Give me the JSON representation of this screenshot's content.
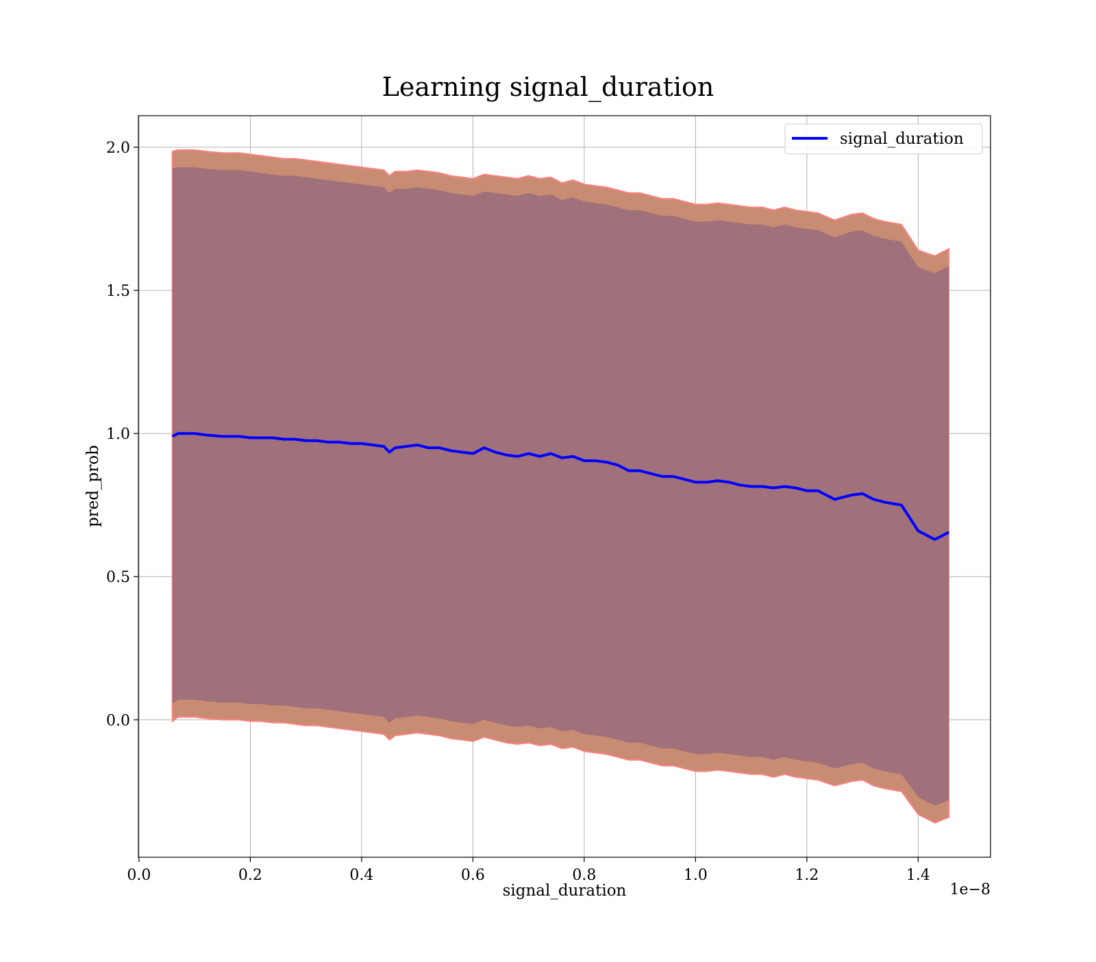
{
  "chart_data": {
    "type": "line",
    "title": "Learning signal_duration",
    "xlabel": "signal_duration",
    "ylabel": "pred_prob",
    "x_offset_text": "1e−8",
    "xlim": [
      -1.15e-11,
      1.53e-08
    ],
    "ylim": [
      -0.48,
      2.11
    ],
    "x_ticks": [
      0.0,
      2e-09,
      4e-09,
      6e-09,
      8e-09,
      1e-08,
      1.2e-08,
      1.4e-08
    ],
    "x_tick_labels": [
      "0.0",
      "0.2",
      "0.4",
      "0.6",
      "0.8",
      "1.0",
      "1.2",
      "1.4"
    ],
    "y_ticks": [
      0.0,
      0.5,
      1.0,
      1.5,
      2.0
    ],
    "y_tick_labels": [
      "0.0",
      "0.5",
      "1.0",
      "1.5",
      "2.0"
    ],
    "grid": true,
    "legend_position": "top-right",
    "colors": {
      "line": "#0000ff",
      "outer_band": "#c88c73",
      "outer_band_edge": "#ff8080",
      "inner_band": "#a0717b",
      "grid": "#b0b0b0"
    },
    "series": [
      {
        "name": "signal_duration",
        "x": [
          6e-10,
          7e-10,
          8e-10,
          1e-09,
          1.2e-09,
          1.5e-09,
          1.8e-09,
          2e-09,
          2.2e-09,
          2.4e-09,
          2.6e-09,
          2.8e-09,
          3e-09,
          3.2e-09,
          3.4e-09,
          3.6e-09,
          3.8e-09,
          4e-09,
          4.2e-09,
          4.4e-09,
          4.5e-09,
          4.6e-09,
          4.8e-09,
          5e-09,
          5.2e-09,
          5.4e-09,
          5.6e-09,
          5.8e-09,
          6e-09,
          6.2e-09,
          6.4e-09,
          6.6e-09,
          6.8e-09,
          7e-09,
          7.2e-09,
          7.4e-09,
          7.6e-09,
          7.8e-09,
          8e-09,
          8.2e-09,
          8.4e-09,
          8.6e-09,
          8.8e-09,
          9e-09,
          9.2e-09,
          9.4e-09,
          9.6e-09,
          9.8e-09,
          1e-08,
          1.02e-08,
          1.04e-08,
          1.06e-08,
          1.08e-08,
          1.1e-08,
          1.12e-08,
          1.14e-08,
          1.16e-08,
          1.18e-08,
          1.2e-08,
          1.22e-08,
          1.25e-08,
          1.28e-08,
          1.3e-08,
          1.32e-08,
          1.34e-08,
          1.37e-08,
          1.4e-08,
          1.43e-08,
          1.455e-08
        ],
        "values": [
          0.99,
          1.0,
          1.0,
          1.0,
          0.995,
          0.99,
          0.99,
          0.985,
          0.985,
          0.985,
          0.98,
          0.98,
          0.975,
          0.975,
          0.97,
          0.97,
          0.965,
          0.965,
          0.96,
          0.955,
          0.935,
          0.95,
          0.955,
          0.96,
          0.95,
          0.95,
          0.94,
          0.935,
          0.93,
          0.95,
          0.935,
          0.925,
          0.92,
          0.93,
          0.92,
          0.93,
          0.915,
          0.92,
          0.905,
          0.905,
          0.9,
          0.89,
          0.87,
          0.87,
          0.86,
          0.85,
          0.85,
          0.84,
          0.83,
          0.83,
          0.835,
          0.83,
          0.82,
          0.815,
          0.815,
          0.81,
          0.815,
          0.81,
          0.8,
          0.8,
          0.77,
          0.785,
          0.79,
          0.77,
          0.76,
          0.75,
          0.66,
          0.63,
          0.655
        ],
        "outer_band_upper": [
          1.985,
          1.99,
          1.99,
          1.99,
          1.985,
          1.98,
          1.98,
          1.975,
          1.97,
          1.965,
          1.96,
          1.96,
          1.955,
          1.95,
          1.945,
          1.94,
          1.935,
          1.93,
          1.925,
          1.92,
          1.9,
          1.915,
          1.915,
          1.92,
          1.915,
          1.91,
          1.9,
          1.895,
          1.89,
          1.905,
          1.9,
          1.895,
          1.89,
          1.9,
          1.89,
          1.895,
          1.875,
          1.885,
          1.87,
          1.865,
          1.86,
          1.85,
          1.84,
          1.84,
          1.83,
          1.82,
          1.82,
          1.81,
          1.8,
          1.8,
          1.805,
          1.8,
          1.795,
          1.79,
          1.79,
          1.78,
          1.79,
          1.78,
          1.775,
          1.77,
          1.745,
          1.765,
          1.77,
          1.75,
          1.74,
          1.73,
          1.64,
          1.62,
          1.645
        ],
        "outer_band_lower": [
          -0.005,
          0.01,
          0.01,
          0.01,
          0.005,
          0.0,
          0.0,
          -0.005,
          -0.005,
          -0.01,
          -0.01,
          -0.015,
          -0.02,
          -0.02,
          -0.025,
          -0.03,
          -0.035,
          -0.04,
          -0.045,
          -0.05,
          -0.07,
          -0.055,
          -0.05,
          -0.045,
          -0.05,
          -0.055,
          -0.065,
          -0.07,
          -0.075,
          -0.06,
          -0.07,
          -0.08,
          -0.085,
          -0.08,
          -0.09,
          -0.085,
          -0.1,
          -0.095,
          -0.11,
          -0.115,
          -0.12,
          -0.13,
          -0.14,
          -0.14,
          -0.15,
          -0.16,
          -0.16,
          -0.17,
          -0.18,
          -0.18,
          -0.175,
          -0.18,
          -0.185,
          -0.19,
          -0.19,
          -0.2,
          -0.19,
          -0.2,
          -0.205,
          -0.21,
          -0.23,
          -0.215,
          -0.21,
          -0.23,
          -0.24,
          -0.25,
          -0.33,
          -0.36,
          -0.34
        ],
        "inner_band_upper": [
          1.925,
          1.93,
          1.93,
          1.93,
          1.925,
          1.92,
          1.92,
          1.915,
          1.91,
          1.905,
          1.9,
          1.9,
          1.895,
          1.89,
          1.885,
          1.88,
          1.875,
          1.87,
          1.865,
          1.86,
          1.84,
          1.855,
          1.855,
          1.86,
          1.855,
          1.85,
          1.84,
          1.835,
          1.83,
          1.845,
          1.84,
          1.835,
          1.83,
          1.84,
          1.83,
          1.835,
          1.815,
          1.825,
          1.81,
          1.805,
          1.8,
          1.79,
          1.78,
          1.78,
          1.77,
          1.76,
          1.76,
          1.75,
          1.74,
          1.74,
          1.745,
          1.74,
          1.735,
          1.73,
          1.73,
          1.72,
          1.73,
          1.72,
          1.715,
          1.71,
          1.685,
          1.705,
          1.71,
          1.69,
          1.68,
          1.67,
          1.58,
          1.56,
          1.585
        ],
        "inner_band_lower": [
          0.055,
          0.07,
          0.07,
          0.07,
          0.065,
          0.06,
          0.06,
          0.055,
          0.055,
          0.05,
          0.05,
          0.045,
          0.04,
          0.04,
          0.035,
          0.03,
          0.025,
          0.02,
          0.015,
          0.01,
          -0.01,
          0.005,
          0.01,
          0.015,
          0.01,
          0.005,
          -0.005,
          -0.01,
          -0.015,
          0.0,
          -0.01,
          -0.02,
          -0.025,
          -0.02,
          -0.03,
          -0.025,
          -0.04,
          -0.035,
          -0.05,
          -0.055,
          -0.06,
          -0.07,
          -0.08,
          -0.08,
          -0.09,
          -0.1,
          -0.1,
          -0.11,
          -0.12,
          -0.12,
          -0.115,
          -0.12,
          -0.125,
          -0.13,
          -0.13,
          -0.14,
          -0.13,
          -0.14,
          -0.145,
          -0.15,
          -0.17,
          -0.155,
          -0.15,
          -0.17,
          -0.18,
          -0.19,
          -0.27,
          -0.3,
          -0.28
        ]
      }
    ]
  }
}
